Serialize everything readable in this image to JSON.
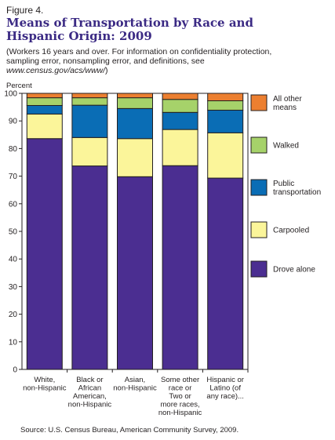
{
  "header": {
    "figure_label": "Figure 4.",
    "title_line1": "Means of Transportation by Race and",
    "title_line2": "Hispanic Origin: 2009",
    "subtitle_line1": "(Workers 16 years and over. For information on confidentiality protection,",
    "subtitle_line2": "sampling error, nonsampling error, and definitions, see",
    "subtitle_url": "www.census.gov/acs/www/",
    "subtitle_end": ")"
  },
  "footer": {
    "source": "Source: U.S. Census Bureau, American Community Survey, 2009."
  },
  "chart_data": {
    "type": "bar",
    "stacked": true,
    "ylabel": "Percent",
    "ylim": [
      0,
      100
    ],
    "yticks": [
      0,
      10,
      20,
      30,
      40,
      50,
      60,
      70,
      80,
      90,
      100
    ],
    "categories": [
      [
        "White,",
        "non-Hispanic"
      ],
      [
        "Black or",
        "African",
        "American,",
        "non-Hispanic"
      ],
      [
        "Asian,",
        "non-Hispanic"
      ],
      [
        "Some other",
        "race or",
        "Two or",
        "more races,",
        "non-Hispanic"
      ],
      [
        "Hispanic or",
        "Latino (of",
        "any race)..."
      ]
    ],
    "series": [
      {
        "name": "Drove alone",
        "color": "#4b2e91",
        "values": [
          83.6,
          73.7,
          69.8,
          73.8,
          69.3
        ]
      },
      {
        "name": "Carpooled",
        "color": "#fbf59a",
        "values": [
          8.9,
          10.3,
          13.8,
          13.1,
          16.4
        ]
      },
      {
        "name": "Public transportation",
        "color": "#0a6db5",
        "values": [
          3.1,
          11.7,
          10.9,
          6.2,
          8.2
        ]
      },
      {
        "name": "Walked",
        "color": "#a6d26a",
        "values": [
          2.8,
          2.7,
          3.9,
          4.7,
          3.4
        ]
      },
      {
        "name": "All other means",
        "color": "#ec7f30",
        "values": [
          1.6,
          1.6,
          1.6,
          2.2,
          2.7
        ]
      }
    ],
    "legend": [
      {
        "lines": [
          "All other",
          "means"
        ],
        "color": "#ec7f30"
      },
      {
        "lines": [
          "Walked"
        ],
        "color": "#a6d26a"
      },
      {
        "lines": [
          "Public",
          "transportation"
        ],
        "color": "#0a6db5"
      },
      {
        "lines": [
          "Carpooled"
        ],
        "color": "#fbf59a"
      },
      {
        "lines": [
          "Drove alone"
        ],
        "color": "#4b2e91"
      }
    ],
    "legend_position": "right",
    "grid": false
  }
}
